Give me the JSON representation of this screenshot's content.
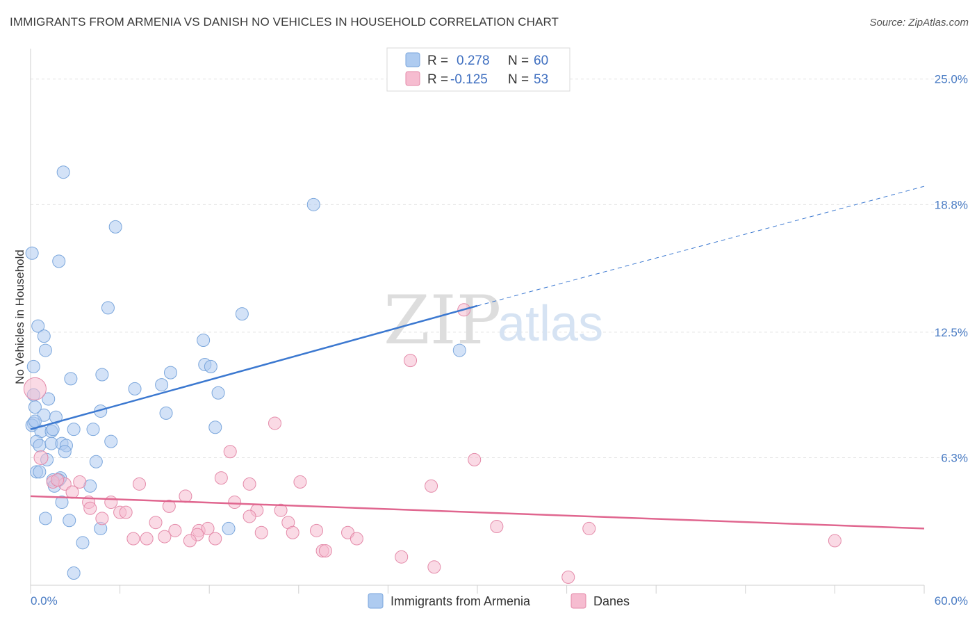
{
  "header": {
    "title": "IMMIGRANTS FROM ARMENIA VS DANISH NO VEHICLES IN HOUSEHOLD CORRELATION CHART",
    "source": "Source: ZipAtlas.com"
  },
  "watermark": {
    "zip": "ZIP",
    "atlas": "atlas"
  },
  "legend": {
    "rows": [
      {
        "r_label": "R =",
        "r_value": "0.278",
        "n_label": "N =",
        "n_value": "60",
        "color": "#aecbf0"
      },
      {
        "r_label": "R =",
        "r_value": "-0.125",
        "n_label": "N =",
        "n_value": "53",
        "color": "#f6bcd0"
      }
    ]
  },
  "bottom_legend": [
    {
      "label": "Immigrants from Armenia",
      "color": "#aecbf0"
    },
    {
      "label": "Danes",
      "color": "#f6bcd0"
    }
  ],
  "chart_data": {
    "type": "scatter",
    "ylabel": "No Vehicles in Household",
    "xlim": [
      0,
      60
    ],
    "ylim": [
      0,
      26.5
    ],
    "x_tick_labels": [
      {
        "value": 0,
        "label": "0.0%"
      },
      {
        "value": 60,
        "label": "60.0%"
      }
    ],
    "y_tick_labels": [
      {
        "value": 6.3,
        "label": "6.3%"
      },
      {
        "value": 12.5,
        "label": "12.5%"
      },
      {
        "value": 18.8,
        "label": "18.8%"
      },
      {
        "value": 25.0,
        "label": "25.0%"
      }
    ],
    "grid": true,
    "legend_position": "top-center",
    "series": [
      {
        "name": "Immigrants from Armenia",
        "color": "#aecbf0",
        "stroke": "#7aa6dc",
        "line_color": "#3b78d0",
        "trend": {
          "x0": 0,
          "y0": 7.7,
          "x1": 30,
          "y1": 13.8,
          "x2": 60,
          "y2": 19.7
        },
        "points": [
          [
            2.2,
            20.4
          ],
          [
            5.7,
            17.7
          ],
          [
            0.1,
            16.4
          ],
          [
            1.9,
            16.0
          ],
          [
            19.0,
            18.8
          ],
          [
            5.2,
            13.7
          ],
          [
            14.2,
            13.4
          ],
          [
            0.5,
            12.8
          ],
          [
            0.9,
            12.3
          ],
          [
            1.0,
            11.6
          ],
          [
            11.6,
            12.1
          ],
          [
            28.8,
            11.6
          ],
          [
            0.2,
            10.8
          ],
          [
            11.7,
            10.9
          ],
          [
            12.1,
            10.8
          ],
          [
            2.7,
            10.2
          ],
          [
            4.8,
            10.4
          ],
          [
            9.4,
            10.5
          ],
          [
            8.8,
            9.9
          ],
          [
            7.0,
            9.7
          ],
          [
            12.6,
            9.5
          ],
          [
            1.2,
            9.2
          ],
          [
            0.3,
            8.8
          ],
          [
            0.9,
            8.4
          ],
          [
            1.7,
            8.3
          ],
          [
            4.7,
            8.6
          ],
          [
            9.1,
            8.5
          ],
          [
            0.2,
            8.0
          ],
          [
            0.1,
            7.9
          ],
          [
            0.7,
            7.6
          ],
          [
            1.4,
            7.6
          ],
          [
            1.5,
            7.7
          ],
          [
            2.9,
            7.7
          ],
          [
            4.2,
            7.7
          ],
          [
            12.4,
            7.8
          ],
          [
            0.4,
            7.1
          ],
          [
            0.6,
            6.9
          ],
          [
            1.4,
            7.0
          ],
          [
            2.1,
            7.0
          ],
          [
            2.4,
            6.9
          ],
          [
            5.4,
            7.1
          ],
          [
            2.3,
            6.6
          ],
          [
            4.4,
            6.1
          ],
          [
            0.4,
            5.6
          ],
          [
            0.6,
            5.6
          ],
          [
            1.5,
            5.2
          ],
          [
            2.0,
            5.3
          ],
          [
            4.0,
            4.9
          ],
          [
            1.6,
            4.9
          ],
          [
            2.1,
            4.1
          ],
          [
            1.0,
            3.3
          ],
          [
            2.6,
            3.2
          ],
          [
            4.7,
            2.8
          ],
          [
            13.3,
            2.8
          ],
          [
            3.5,
            2.1
          ],
          [
            2.9,
            0.6
          ],
          [
            0.2,
            9.4
          ],
          [
            0.3,
            8.1
          ],
          [
            1.1,
            6.2
          ],
          [
            1.9,
            5.2
          ]
        ]
      },
      {
        "name": "Danes",
        "color": "#f6bcd0",
        "stroke": "#e48aa9",
        "line_color": "#e0668f",
        "trend": {
          "x0": 0,
          "y0": 4.4,
          "x1": 60,
          "y1": 2.8
        },
        "points": [
          [
            0.3,
            9.7
          ],
          [
            0.7,
            6.3
          ],
          [
            29.1,
            13.6
          ],
          [
            25.5,
            11.1
          ],
          [
            16.4,
            8.0
          ],
          [
            29.8,
            6.2
          ],
          [
            13.4,
            6.6
          ],
          [
            12.8,
            5.3
          ],
          [
            18.1,
            5.1
          ],
          [
            14.7,
            5.0
          ],
          [
            26.9,
            4.9
          ],
          [
            3.3,
            5.1
          ],
          [
            7.3,
            5.0
          ],
          [
            2.3,
            5.0
          ],
          [
            1.5,
            5.1
          ],
          [
            2.8,
            4.6
          ],
          [
            10.4,
            4.4
          ],
          [
            3.9,
            4.1
          ],
          [
            5.4,
            4.1
          ],
          [
            4.0,
            3.8
          ],
          [
            9.3,
            3.9
          ],
          [
            13.7,
            4.1
          ],
          [
            6.0,
            3.6
          ],
          [
            6.4,
            3.6
          ],
          [
            15.2,
            3.7
          ],
          [
            16.8,
            3.7
          ],
          [
            14.7,
            3.4
          ],
          [
            4.8,
            3.3
          ],
          [
            8.4,
            3.1
          ],
          [
            17.3,
            3.1
          ],
          [
            31.3,
            2.9
          ],
          [
            37.5,
            2.8
          ],
          [
            9.7,
            2.7
          ],
          [
            11.3,
            2.7
          ],
          [
            11.9,
            2.8
          ],
          [
            15.5,
            2.6
          ],
          [
            17.6,
            2.6
          ],
          [
            19.2,
            2.7
          ],
          [
            21.3,
            2.6
          ],
          [
            11.2,
            2.5
          ],
          [
            9.0,
            2.4
          ],
          [
            6.9,
            2.3
          ],
          [
            7.8,
            2.3
          ],
          [
            10.7,
            2.2
          ],
          [
            12.4,
            2.3
          ],
          [
            21.9,
            2.3
          ],
          [
            54.0,
            2.2
          ],
          [
            19.6,
            1.7
          ],
          [
            19.8,
            1.7
          ],
          [
            24.9,
            1.4
          ],
          [
            27.1,
            0.9
          ],
          [
            36.1,
            0.4
          ],
          [
            1.8,
            5.2
          ]
        ]
      }
    ]
  }
}
